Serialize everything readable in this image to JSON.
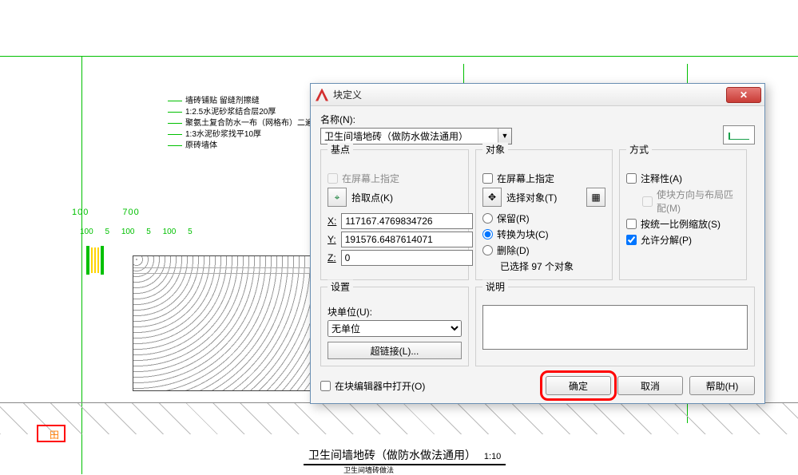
{
  "cad": {
    "notes": [
      "墙砖铺贴 留缝剂擦缝",
      "1:2.5水泥砂浆结合层20厚",
      "聚氨土复合防水一布（网格布）二遍（周性涂料）二遍（柔性涂料）",
      "1:3水泥砂浆找平10厚",
      "原砖墙体"
    ],
    "dims1": [
      "100",
      "700"
    ],
    "dims2": [
      "100",
      "5",
      "100",
      "5",
      "100",
      "5"
    ],
    "title": "卫生间墙地砖（做防水做法通用）",
    "scale": "1:10",
    "subtitle": "卫生间墙砖做法"
  },
  "dialog": {
    "title": "块定义",
    "name_label": "名称(N):",
    "name_value": "卫生间墙地砖（做防水做法通用）",
    "base": {
      "legend": "基点",
      "on_screen": "在屏幕上指定",
      "pick": "拾取点(K)",
      "x_label": "X:",
      "y_label": "Y:",
      "z_label": "Z:",
      "x": "117167.4769834726",
      "y": "191576.6487614071",
      "z": "0"
    },
    "objects": {
      "legend": "对象",
      "on_screen": "在屏幕上指定",
      "select": "选择对象(T)",
      "retain": "保留(R)",
      "convert": "转换为块(C)",
      "delete": "删除(D)",
      "status_prefix": "已选择 ",
      "status_count": "97",
      "status_suffix": " 个对象"
    },
    "behavior": {
      "legend": "方式",
      "annotative": "注释性(A)",
      "match_orient": "使块方向与布局匹配(M)",
      "scale_uniform": "按统一比例缩放(S)",
      "explodable": "允许分解(P)"
    },
    "settings": {
      "legend": "设置",
      "units_label": "块单位(U):",
      "units_value": "无单位",
      "hyperlink": "超链接(L)..."
    },
    "description": {
      "legend": "说明",
      "value": ""
    },
    "open_editor": "在块编辑器中打开(O)",
    "ok": "确定",
    "cancel": "取消",
    "help": "帮助(H)"
  }
}
